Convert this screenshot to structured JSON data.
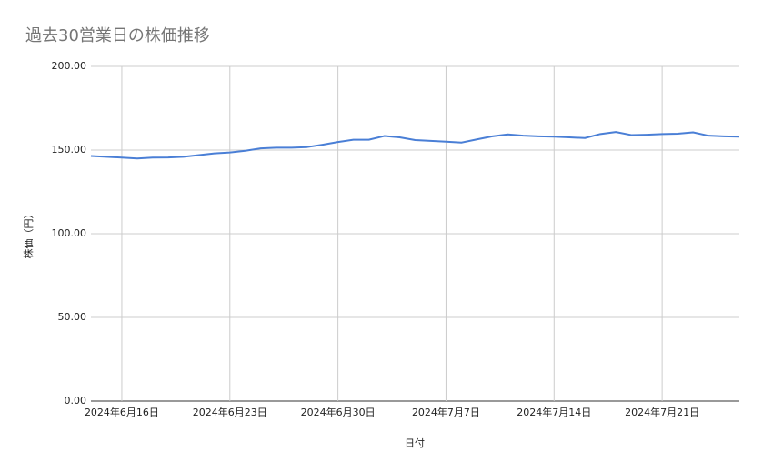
{
  "chart_data": {
    "type": "line",
    "title": "過去30営業日の株価推移",
    "x_label": "日付",
    "y_label": "株価（円）",
    "color": "#4a7fd6",
    "grid": true,
    "x": [
      "2024-06-14",
      "2024-06-15",
      "2024-06-16",
      "2024-06-17",
      "2024-06-18",
      "2024-06-19",
      "2024-06-20",
      "2024-06-21",
      "2024-06-22",
      "2024-06-23",
      "2024-06-24",
      "2024-06-25",
      "2024-06-26",
      "2024-06-27",
      "2024-06-28",
      "2024-06-29",
      "2024-06-30",
      "2024-07-01",
      "2024-07-02",
      "2024-07-03",
      "2024-07-04",
      "2024-07-05",
      "2024-07-06",
      "2024-07-07",
      "2024-07-08",
      "2024-07-09",
      "2024-07-10",
      "2024-07-11",
      "2024-07-12",
      "2024-07-13",
      "2024-07-14",
      "2024-07-15",
      "2024-07-16",
      "2024-07-17",
      "2024-07-18",
      "2024-07-19",
      "2024-07-20",
      "2024-07-21",
      "2024-07-22",
      "2024-07-23",
      "2024-07-24",
      "2024-07-25",
      "2024-07-26"
    ],
    "values": [
      146.5,
      146,
      145.5,
      145,
      145.5,
      145.6,
      146,
      147,
      148,
      148.6,
      149.6,
      151,
      151.4,
      151.4,
      151.8,
      153.2,
      154.8,
      156.2,
      156.2,
      158.4,
      157.6,
      156,
      155.5,
      155,
      154.5,
      156.4,
      158.2,
      159.4,
      158.6,
      158.2,
      158,
      157.6,
      157.2,
      159.6,
      160.8,
      159,
      159.2,
      159.6,
      159.8,
      160.6,
      158.6,
      158.2,
      158
    ],
    "xlim": [
      "2024-06-14",
      "2024-07-26"
    ],
    "xticks": [
      {
        "value": "2024-06-16",
        "label": "2024年6月16日"
      },
      {
        "value": "2024-06-23",
        "label": "2024年6月23日"
      },
      {
        "value": "2024-06-30",
        "label": "2024年6月30日"
      },
      {
        "value": "2024-07-07",
        "label": "2024年7月7日"
      },
      {
        "value": "2024-07-14",
        "label": "2024年7月14日"
      },
      {
        "value": "2024-07-21",
        "label": "2024年7月21日"
      }
    ],
    "ylim": [
      0,
      200
    ],
    "yticks": [
      {
        "value": 0,
        "label": "0.00"
      },
      {
        "value": 50,
        "label": "50.00"
      },
      {
        "value": 100,
        "label": "100.00"
      },
      {
        "value": 150,
        "label": "150.00"
      },
      {
        "value": 200,
        "label": "200.00"
      }
    ]
  }
}
